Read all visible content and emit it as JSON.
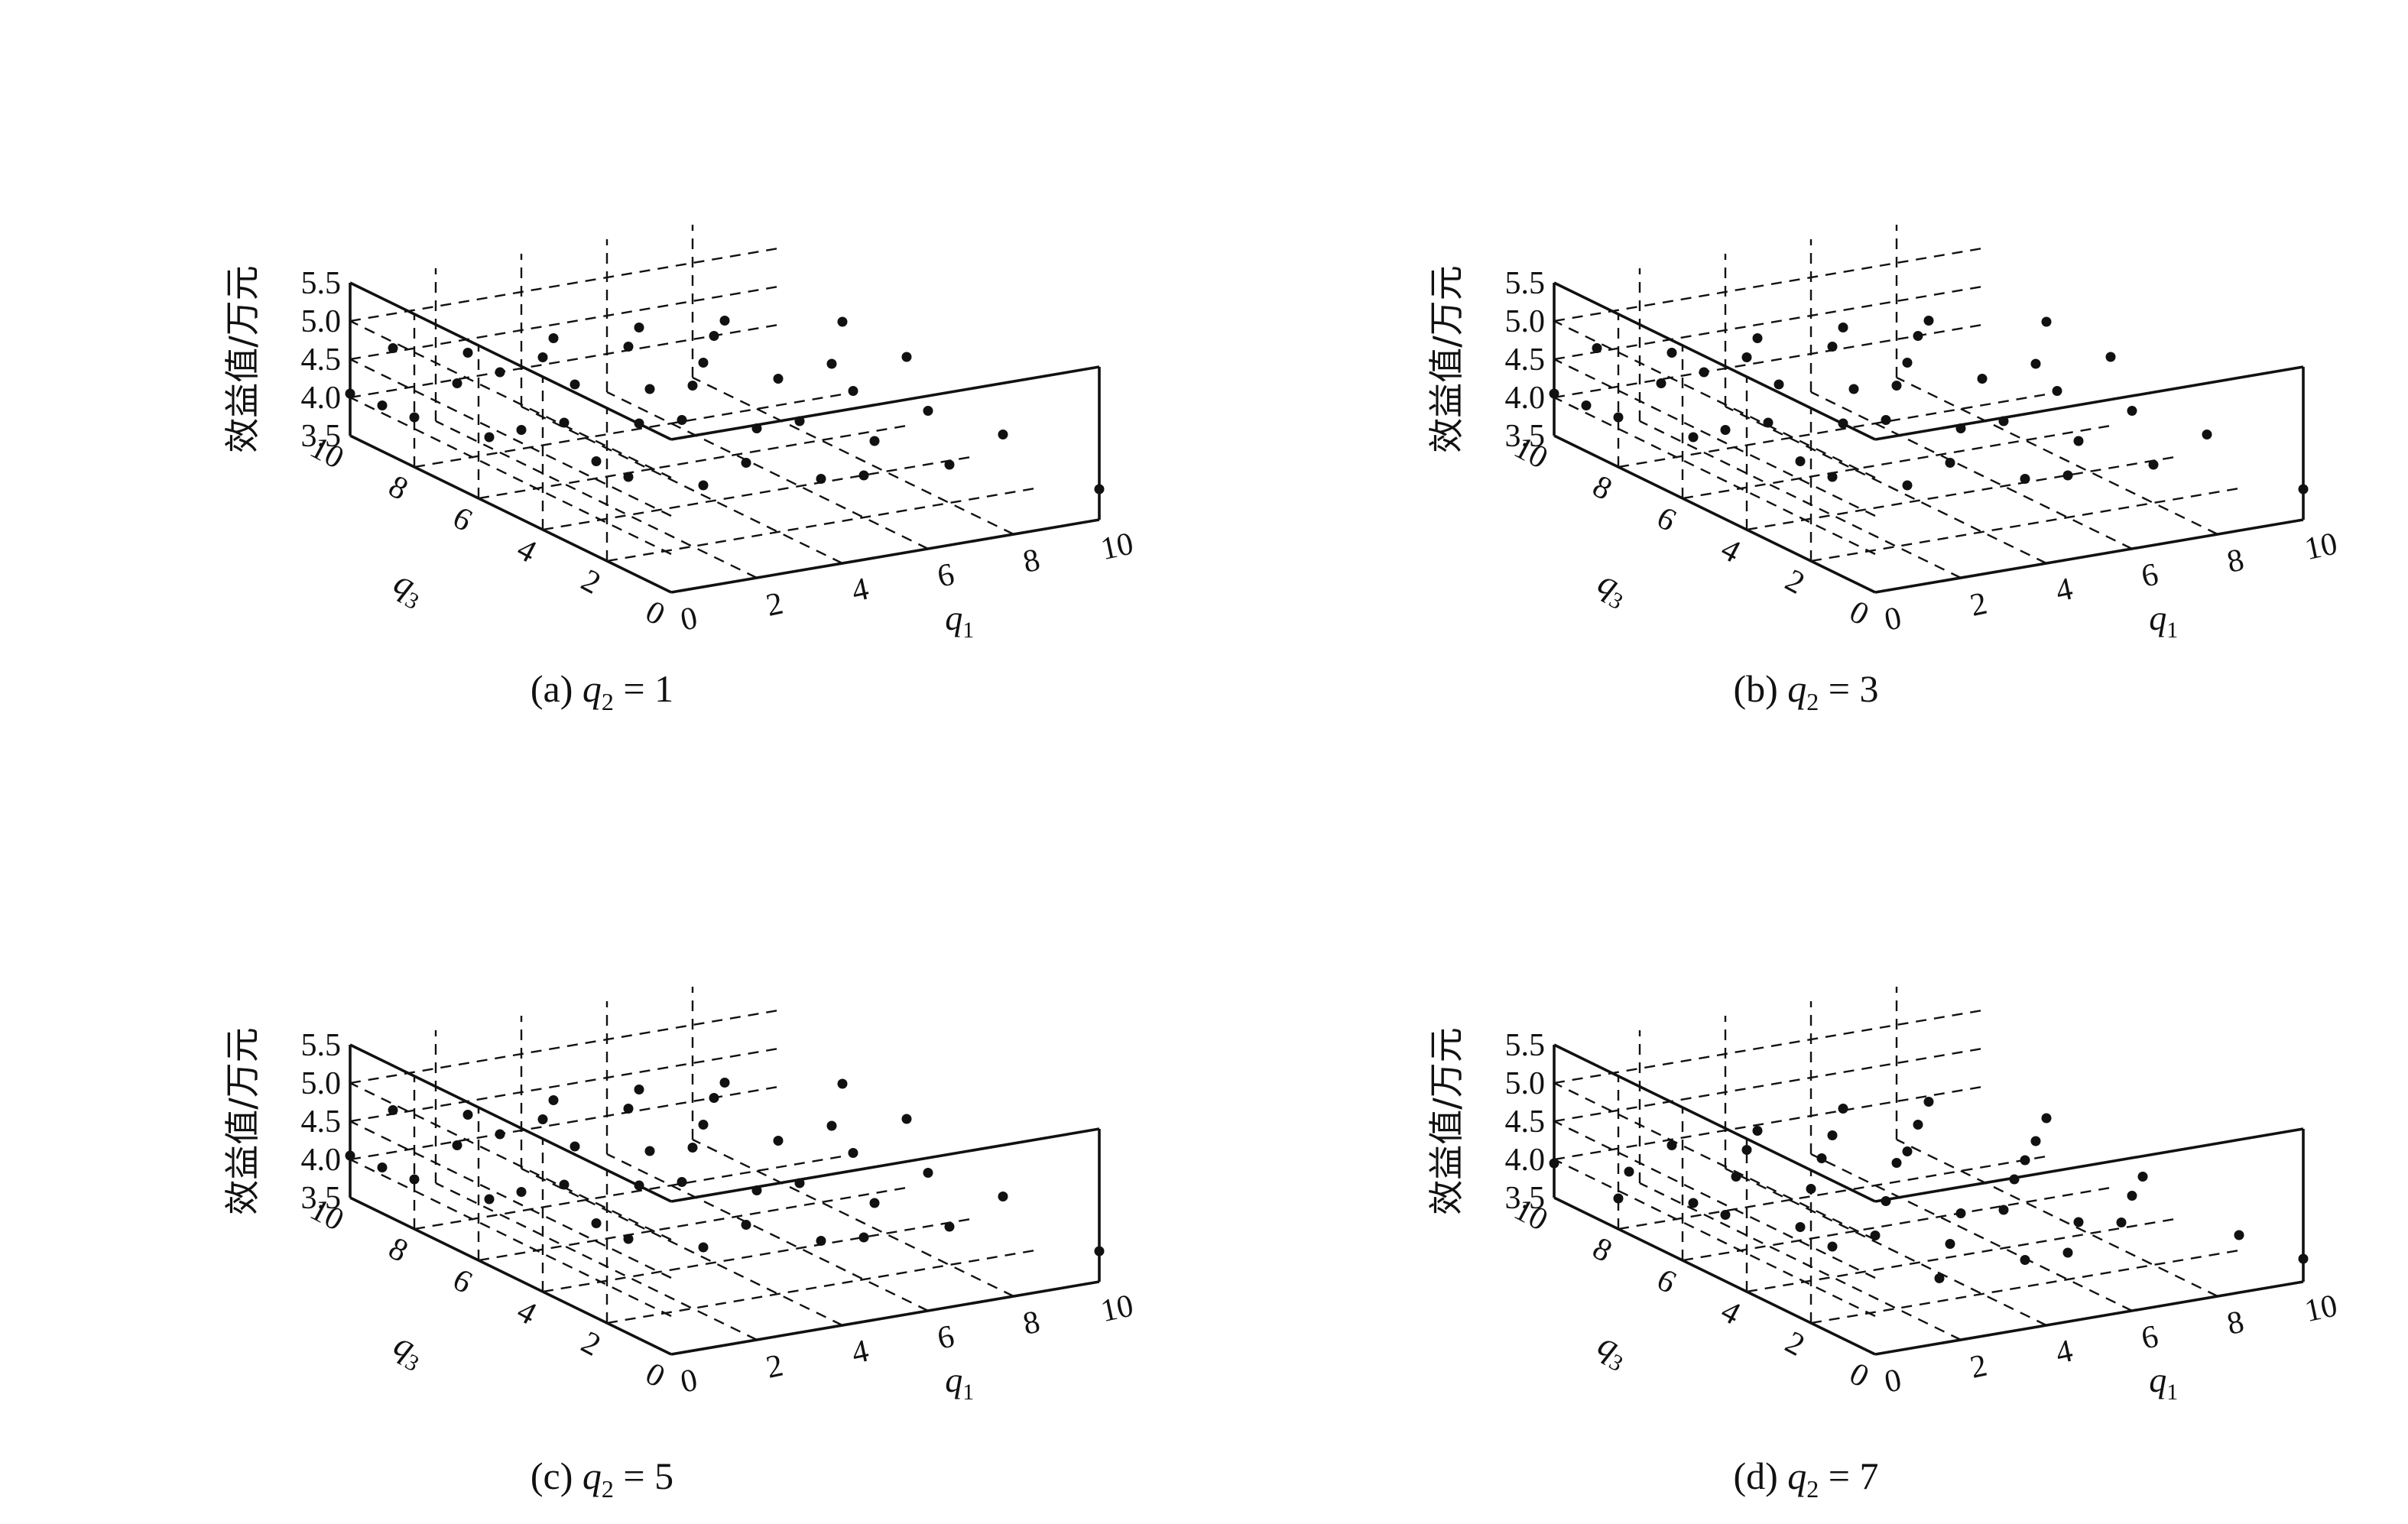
{
  "figure": {
    "panels": [
      {
        "caption": {
          "prefix": "(a)",
          "var": "q",
          "sub": "2",
          "eq": "= 1"
        },
        "z_axis_label": "效益值/万元",
        "x_axis_label": {
          "var": "q",
          "sub": "1"
        },
        "y_axis_label": {
          "var": "q",
          "sub": "3"
        },
        "z_ticks": [
          "5.5",
          "5.0",
          "4.5",
          "4.0",
          "3.5"
        ],
        "x_ticks": [
          "0",
          "2",
          "4",
          "6",
          "8",
          "10"
        ],
        "y_ticks": [
          "10",
          "8",
          "6",
          "4",
          "2",
          "0"
        ]
      },
      {
        "caption": {
          "prefix": "(b)",
          "var": "q",
          "sub": "2",
          "eq": "= 3"
        },
        "z_axis_label": "效益值/万元",
        "x_axis_label": {
          "var": "q",
          "sub": "1"
        },
        "y_axis_label": {
          "var": "q",
          "sub": "3"
        },
        "z_ticks": [
          "5.5",
          "5.0",
          "4.5",
          "4.0",
          "3.5"
        ],
        "x_ticks": [
          "0",
          "2",
          "4",
          "6",
          "8",
          "10"
        ],
        "y_ticks": [
          "10",
          "8",
          "6",
          "4",
          "2",
          "0"
        ]
      },
      {
        "caption": {
          "prefix": "(c)",
          "var": "q",
          "sub": "2",
          "eq": "= 5"
        },
        "z_axis_label": "效益值/万元",
        "x_axis_label": {
          "var": "q",
          "sub": "1"
        },
        "y_axis_label": {
          "var": "q",
          "sub": "3"
        },
        "z_ticks": [
          "5.5",
          "5.0",
          "4.5",
          "4.0",
          "3.5"
        ],
        "x_ticks": [
          "0",
          "2",
          "4",
          "6",
          "8",
          "10"
        ],
        "y_ticks": [
          "10",
          "8",
          "6",
          "4",
          "2",
          "0"
        ]
      },
      {
        "caption": {
          "prefix": "(d)",
          "var": "q",
          "sub": "2",
          "eq": "= 7"
        },
        "z_axis_label": "效益值/万元",
        "x_axis_label": {
          "var": "q",
          "sub": "1"
        },
        "y_axis_label": {
          "var": "q",
          "sub": "3"
        },
        "z_ticks": [
          "5.5",
          "5.0",
          "4.5",
          "4.0",
          "3.5"
        ],
        "x_ticks": [
          "0",
          "2",
          "4",
          "6",
          "8",
          "10"
        ],
        "y_ticks": [
          "10",
          "8",
          "6",
          "4",
          "2",
          "0"
        ]
      }
    ]
  },
  "chart_data": [
    {
      "type": "scatter",
      "title": "(a) q2 = 1",
      "zlabel": "效益值/万元",
      "xlabel": "q1",
      "ylabel": "q3",
      "xlim": [
        0,
        10
      ],
      "ylim": [
        0,
        10
      ],
      "zlim": [
        3.5,
        5.5
      ],
      "grid": true,
      "q2": 1,
      "points": [
        [
          0,
          10,
          4.05
        ],
        [
          0,
          9,
          4.1
        ],
        [
          0,
          8,
          4.15
        ],
        [
          1,
          10,
          4.55
        ],
        [
          1,
          8,
          4.5
        ],
        [
          1,
          7,
          4.0
        ],
        [
          1,
          6,
          4.3
        ],
        [
          2,
          9,
          4.6
        ],
        [
          2,
          8,
          4.55
        ],
        [
          2,
          6,
          4.3
        ],
        [
          2,
          5,
          4.0
        ],
        [
          2,
          4,
          4.0
        ],
        [
          3,
          8,
          4.65
        ],
        [
          3,
          7,
          4.5
        ],
        [
          3,
          5,
          4.4
        ],
        [
          3,
          3,
          4.0
        ],
        [
          4,
          9,
          4.6
        ],
        [
          4,
          6,
          4.55
        ],
        [
          4,
          5,
          4.35
        ],
        [
          4,
          3,
          4.2
        ],
        [
          5,
          8,
          4.6
        ],
        [
          5,
          6,
          4.5
        ],
        [
          5,
          4,
          4.35
        ],
        [
          5,
          2,
          4.1
        ],
        [
          6,
          9,
          4.55
        ],
        [
          6,
          7,
          4.5
        ],
        [
          6,
          4,
          4.35
        ],
        [
          6,
          2,
          4.05
        ],
        [
          7,
          8,
          4.55
        ],
        [
          7,
          6,
          4.4
        ],
        [
          7,
          3,
          4.2
        ],
        [
          8,
          9,
          4.45
        ],
        [
          8,
          5,
          4.35
        ],
        [
          8,
          2,
          4.0
        ],
        [
          9,
          7,
          4.2
        ],
        [
          9,
          4,
          4.2
        ],
        [
          10,
          0,
          3.9
        ],
        [
          10,
          3,
          4.0
        ],
        [
          10,
          6,
          4.4
        ],
        [
          10,
          8,
          4.45
        ]
      ]
    },
    {
      "type": "scatter",
      "title": "(b) q2 = 3",
      "zlabel": "效益值/万元",
      "xlabel": "q1",
      "ylabel": "q3",
      "xlim": [
        0,
        10
      ],
      "ylim": [
        0,
        10
      ],
      "zlim": [
        3.5,
        5.5
      ],
      "grid": true,
      "q2": 3,
      "points": [
        [
          0,
          10,
          4.05
        ],
        [
          0,
          9,
          4.1
        ],
        [
          0,
          8,
          4.15
        ],
        [
          1,
          10,
          4.55
        ],
        [
          1,
          8,
          4.5
        ],
        [
          1,
          7,
          4.0
        ],
        [
          1,
          6,
          4.3
        ],
        [
          2,
          9,
          4.6
        ],
        [
          2,
          8,
          4.55
        ],
        [
          2,
          6,
          4.3
        ],
        [
          2,
          5,
          4.0
        ],
        [
          2,
          4,
          4.0
        ],
        [
          3,
          8,
          4.65
        ],
        [
          3,
          7,
          4.5
        ],
        [
          3,
          5,
          4.4
        ],
        [
          3,
          3,
          4.0
        ],
        [
          4,
          9,
          4.6
        ],
        [
          4,
          6,
          4.55
        ],
        [
          4,
          5,
          4.35
        ],
        [
          4,
          3,
          4.2
        ],
        [
          5,
          8,
          4.6
        ],
        [
          5,
          6,
          4.5
        ],
        [
          5,
          4,
          4.35
        ],
        [
          5,
          2,
          4.1
        ],
        [
          6,
          9,
          4.55
        ],
        [
          6,
          7,
          4.5
        ],
        [
          6,
          4,
          4.35
        ],
        [
          6,
          2,
          4.05
        ],
        [
          7,
          8,
          4.55
        ],
        [
          7,
          6,
          4.4
        ],
        [
          7,
          3,
          4.2
        ],
        [
          8,
          9,
          4.45
        ],
        [
          8,
          5,
          4.35
        ],
        [
          8,
          2,
          4.0
        ],
        [
          9,
          7,
          4.2
        ],
        [
          9,
          4,
          4.2
        ],
        [
          10,
          0,
          3.9
        ],
        [
          10,
          3,
          4.0
        ],
        [
          10,
          6,
          4.4
        ],
        [
          10,
          8,
          4.45
        ]
      ]
    },
    {
      "type": "scatter",
      "title": "(c) q2 = 5",
      "zlabel": "效益值/万元",
      "xlabel": "q1",
      "ylabel": "q3",
      "xlim": [
        0,
        10
      ],
      "ylim": [
        0,
        10
      ],
      "zlim": [
        3.5,
        5.5
      ],
      "grid": true,
      "q2": 5,
      "points": [
        [
          0,
          10,
          4.05
        ],
        [
          0,
          9,
          4.1
        ],
        [
          0,
          8,
          4.15
        ],
        [
          1,
          10,
          4.55
        ],
        [
          1,
          8,
          4.5
        ],
        [
          1,
          7,
          4.0
        ],
        [
          1,
          6,
          4.3
        ],
        [
          2,
          9,
          4.6
        ],
        [
          2,
          8,
          4.55
        ],
        [
          2,
          6,
          4.3
        ],
        [
          2,
          5,
          4.0
        ],
        [
          2,
          4,
          4.0
        ],
        [
          3,
          8,
          4.65
        ],
        [
          3,
          7,
          4.5
        ],
        [
          3,
          5,
          4.4
        ],
        [
          3,
          3,
          4.0
        ],
        [
          4,
          9,
          4.6
        ],
        [
          4,
          6,
          4.55
        ],
        [
          4,
          5,
          4.35
        ],
        [
          4,
          3,
          4.2
        ],
        [
          5,
          8,
          4.6
        ],
        [
          5,
          6,
          4.5
        ],
        [
          5,
          4,
          4.35
        ],
        [
          5,
          2,
          4.1
        ],
        [
          6,
          9,
          4.55
        ],
        [
          6,
          7,
          4.5
        ],
        [
          6,
          4,
          4.35
        ],
        [
          6,
          2,
          4.05
        ],
        [
          7,
          8,
          4.55
        ],
        [
          7,
          6,
          4.4
        ],
        [
          7,
          3,
          4.2
        ],
        [
          8,
          9,
          4.45
        ],
        [
          8,
          5,
          4.35
        ],
        [
          8,
          2,
          4.0
        ],
        [
          9,
          7,
          4.2
        ],
        [
          9,
          4,
          4.2
        ],
        [
          10,
          0,
          3.9
        ],
        [
          10,
          3,
          4.0
        ],
        [
          10,
          6,
          4.4
        ],
        [
          10,
          8,
          4.45
        ]
      ]
    },
    {
      "type": "scatter",
      "title": "(d) q2 = 7",
      "zlabel": "效益值/万元",
      "xlabel": "q1",
      "ylabel": "q3",
      "xlim": [
        0,
        10
      ],
      "ylim": [
        0,
        10
      ],
      "zlim": [
        3.5,
        5.5
      ],
      "grid": true,
      "q2": 7,
      "points": [
        [
          0,
          10,
          3.95
        ],
        [
          0,
          8,
          3.9
        ],
        [
          1,
          9,
          3.95
        ],
        [
          1,
          7,
          3.95
        ],
        [
          1,
          6,
          4.0
        ],
        [
          2,
          9,
          4.2
        ],
        [
          2,
          7,
          4.2
        ],
        [
          2,
          5,
          3.95
        ],
        [
          2,
          4,
          3.9
        ],
        [
          3,
          8,
          4.25
        ],
        [
          3,
          6,
          4.15
        ],
        [
          3,
          4,
          3.95
        ],
        [
          3,
          2,
          3.8
        ],
        [
          4,
          9,
          4.2
        ],
        [
          4,
          7,
          4.25
        ],
        [
          4,
          5,
          4.1
        ],
        [
          4,
          3,
          3.95
        ],
        [
          5,
          8,
          4.25
        ],
        [
          5,
          6,
          4.3
        ],
        [
          5,
          4,
          4.05
        ],
        [
          5,
          2,
          3.85
        ],
        [
          6,
          9,
          4.3
        ],
        [
          6,
          7,
          4.15
        ],
        [
          6,
          4,
          4.0
        ],
        [
          6,
          2,
          3.85
        ],
        [
          7,
          8,
          4.2
        ],
        [
          7,
          5,
          4.1
        ],
        [
          7,
          3,
          3.95
        ],
        [
          8,
          9,
          4.2
        ],
        [
          8,
          6,
          4.05
        ],
        [
          8,
          3,
          3.85
        ],
        [
          9,
          7,
          4.0
        ],
        [
          9,
          4,
          3.9
        ],
        [
          10,
          0,
          3.8
        ],
        [
          10,
          2,
          3.7
        ],
        [
          10,
          5,
          3.85
        ],
        [
          10,
          8,
          4.0
        ]
      ]
    }
  ]
}
